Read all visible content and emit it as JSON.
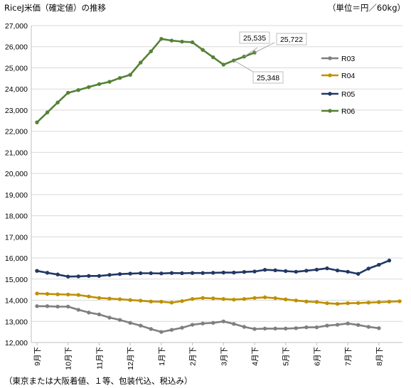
{
  "chart_data": {
    "type": "line",
    "title": "RiceJ米価（確定値）の推移",
    "unit_label": "（単位＝円／60kg）",
    "footnote": "（東京または大阪着値、１等、包装代込、税込み）",
    "ylim": [
      12000,
      27000
    ],
    "y_ticks": [
      "12,000",
      "13,000",
      "14,000",
      "15,000",
      "16,000",
      "17,000",
      "18,000",
      "19,000",
      "20,000",
      "21,000",
      "22,000",
      "23,000",
      "24,000",
      "25,000",
      "26,000",
      "27,000"
    ],
    "x_tick_labels": [
      "9月下",
      "10月下",
      "11月下",
      "12月下",
      "1月下",
      "2月下",
      "3月下",
      "4月下",
      "5月下",
      "6月下",
      "7月下",
      "8月下"
    ],
    "grid": "horizontal",
    "legend_position": "right",
    "series": [
      {
        "name": "R03",
        "color": "#7f7f7f",
        "values": [
          13720,
          13720,
          13700,
          13700,
          13550,
          13420,
          13330,
          13180,
          13070,
          12930,
          12800,
          12640,
          12500,
          12600,
          12700,
          12840,
          12900,
          12930,
          13000,
          12880,
          12740,
          12640,
          12660,
          12660,
          12660,
          12680,
          12720,
          12720,
          12800,
          12840,
          12900,
          12830,
          12740,
          12680
        ]
      },
      {
        "name": "R04",
        "color": "#bf9000",
        "values": [
          14320,
          14300,
          14280,
          14270,
          14250,
          14180,
          14110,
          14080,
          14050,
          14010,
          13980,
          13940,
          13930,
          13890,
          13960,
          14060,
          14110,
          14090,
          14060,
          14030,
          14060,
          14110,
          14140,
          14100,
          14040,
          13990,
          13940,
          13920,
          13860,
          13830,
          13860,
          13870,
          13890,
          13910,
          13930,
          13950
        ]
      },
      {
        "name": "R05",
        "color": "#203864",
        "values": [
          15390,
          15300,
          15220,
          15120,
          15130,
          15150,
          15150,
          15200,
          15240,
          15260,
          15280,
          15280,
          15270,
          15290,
          15280,
          15290,
          15290,
          15300,
          15310,
          15310,
          15340,
          15360,
          15440,
          15420,
          15380,
          15350,
          15400,
          15450,
          15510,
          15410,
          15350,
          15250,
          15500,
          15680,
          15880
        ]
      },
      {
        "name": "R06",
        "color": "#548235",
        "values": [
          22420,
          22890,
          23360,
          23820,
          23950,
          24090,
          24230,
          24340,
          24520,
          24670,
          25250,
          25780,
          26370,
          26290,
          26240,
          26210,
          25850,
          25500,
          25150,
          25348,
          25535,
          25722
        ]
      }
    ],
    "annotations": [
      {
        "series": "R06",
        "label": "25,535"
      },
      {
        "series": "R06",
        "label": "25,722"
      },
      {
        "series": "R06",
        "label": "25,348"
      }
    ]
  }
}
